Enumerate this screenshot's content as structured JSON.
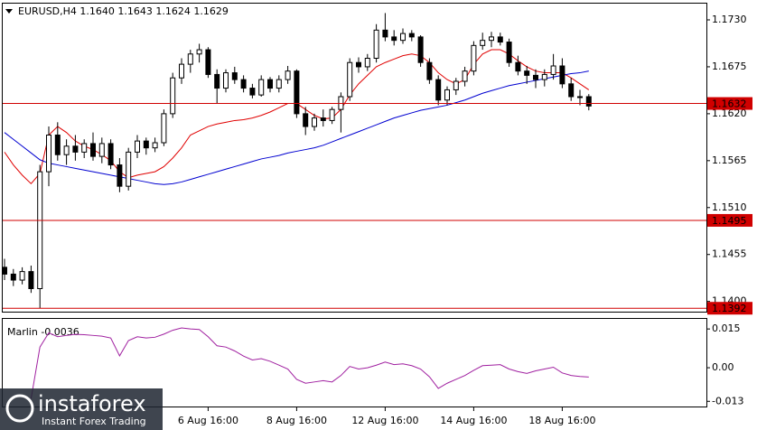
{
  "chart_data": [
    {
      "type": "candlestick",
      "title": "EURUSD,H4  1.1640 1.1643 1.1624 1.1629",
      "categories": [
        null,
        null,
        null,
        null,
        null,
        null,
        null,
        null,
        null,
        null,
        null,
        null,
        null,
        null,
        null,
        null,
        null,
        null,
        null,
        null,
        null,
        null,
        null,
        "6 Aug 16:00",
        null,
        null,
        null,
        null,
        null,
        null,
        null,
        null,
        null,
        "8 Aug 16:00",
        null,
        null,
        null,
        null,
        null,
        null,
        null,
        null,
        null,
        "12 Aug 16:00",
        null,
        null,
        null,
        null,
        null,
        null,
        null,
        null,
        null,
        "14 Aug 16:00",
        null,
        null,
        null,
        null,
        null,
        null,
        null,
        null,
        null,
        "18 Aug 16:00",
        null,
        null,
        null
      ],
      "open": [
        1.144,
        1.1432,
        1.1425,
        1.1435,
        1.1415,
        1.1552,
        1.1595,
        1.1572,
        1.1582,
        1.1575,
        1.1585,
        1.157,
        1.1585,
        1.156,
        1.1535,
        1.1575,
        1.1588,
        1.158,
        1.1586,
        1.162,
        1.1662,
        1.1678,
        1.169,
        1.1695,
        1.1666,
        1.165,
        1.1668,
        1.166,
        1.165,
        1.1642,
        1.166,
        1.165,
        1.166,
        1.167,
        1.162,
        1.1605,
        1.1615,
        1.1612,
        1.1625,
        1.164,
        1.168,
        1.1675,
        1.1685,
        1.1718,
        1.171,
        1.1706,
        1.1714,
        1.171,
        1.168,
        1.166,
        1.1636,
        1.1648,
        1.1658,
        1.167,
        1.17,
        1.1706,
        1.171,
        1.1704,
        1.168,
        1.167,
        1.1665,
        1.166,
        1.1666,
        1.1676,
        1.1655,
        1.164,
        1.164
      ],
      "high": [
        1.145,
        1.1438,
        1.144,
        1.1442,
        1.156,
        1.1605,
        1.161,
        1.159,
        1.1595,
        1.159,
        1.1598,
        1.1592,
        1.159,
        1.1568,
        1.158,
        1.1595,
        1.1592,
        1.1592,
        1.1625,
        1.1668,
        1.1685,
        1.1695,
        1.1702,
        1.1698,
        1.1672,
        1.1672,
        1.1675,
        1.1665,
        1.1655,
        1.1665,
        1.1663,
        1.1665,
        1.1676,
        1.1672,
        1.1628,
        1.162,
        1.1625,
        1.1628,
        1.1645,
        1.1685,
        1.1686,
        1.169,
        1.1725,
        1.1738,
        1.1718,
        1.172,
        1.1718,
        1.1712,
        1.1685,
        1.1665,
        1.1652,
        1.1662,
        1.1675,
        1.1705,
        1.1715,
        1.1716,
        1.1715,
        1.1708,
        1.1688,
        1.1676,
        1.1672,
        1.1672,
        1.169,
        1.1685,
        1.1662,
        1.1648,
        1.1643
      ],
      "low": [
        1.1425,
        1.1418,
        1.142,
        1.141,
        1.1392,
        1.1535,
        1.1565,
        1.156,
        1.1565,
        1.1568,
        1.1565,
        1.1562,
        1.1555,
        1.1528,
        1.153,
        1.1568,
        1.1572,
        1.1575,
        1.1582,
        1.1615,
        1.1655,
        1.1668,
        1.168,
        1.1662,
        1.1632,
        1.1645,
        1.1655,
        1.1645,
        1.1638,
        1.164,
        1.1645,
        1.1645,
        1.1655,
        1.1615,
        1.1595,
        1.16,
        1.1605,
        1.1608,
        1.1598,
        1.1635,
        1.1668,
        1.167,
        1.168,
        1.1705,
        1.17,
        1.1702,
        1.1705,
        1.1675,
        1.1655,
        1.163,
        1.163,
        1.1642,
        1.1652,
        1.1665,
        1.1695,
        1.1698,
        1.17,
        1.1675,
        1.1665,
        1.1655,
        1.165,
        1.1652,
        1.166,
        1.165,
        1.1635,
        1.163,
        1.1624
      ],
      "close": [
        1.1432,
        1.1425,
        1.1435,
        1.1415,
        1.1552,
        1.1595,
        1.1572,
        1.1582,
        1.1575,
        1.1585,
        1.157,
        1.1585,
        1.156,
        1.1535,
        1.1575,
        1.1588,
        1.158,
        1.1586,
        1.162,
        1.1662,
        1.1678,
        1.169,
        1.1695,
        1.1666,
        1.165,
        1.1668,
        1.166,
        1.165,
        1.1642,
        1.166,
        1.165,
        1.166,
        1.167,
        1.162,
        1.1605,
        1.1615,
        1.1612,
        1.1625,
        1.164,
        1.168,
        1.1675,
        1.1685,
        1.1718,
        1.171,
        1.1706,
        1.1714,
        1.171,
        1.168,
        1.166,
        1.1636,
        1.1648,
        1.1658,
        1.167,
        1.17,
        1.1706,
        1.171,
        1.1704,
        1.168,
        1.167,
        1.1665,
        1.166,
        1.1666,
        1.1676,
        1.1655,
        1.164,
        1.164,
        1.1629
      ],
      "overlays": [
        {
          "color": "#e00000",
          "values": [
            1.1575,
            1.156,
            1.1548,
            1.1538,
            1.155,
            1.1595,
            1.1605,
            1.1598,
            1.1588,
            1.1582,
            1.1578,
            1.1572,
            1.1565,
            1.1552,
            1.1545,
            1.1548,
            1.155,
            1.1552,
            1.1558,
            1.1568,
            1.158,
            1.1595,
            1.16,
            1.1605,
            1.1608,
            1.161,
            1.1612,
            1.1613,
            1.1615,
            1.1618,
            1.1622,
            1.1627,
            1.1632,
            1.1632,
            1.1625,
            1.1618,
            1.1614,
            1.1615,
            1.1625,
            1.1642,
            1.1655,
            1.1665,
            1.1675,
            1.168,
            1.1684,
            1.1688,
            1.169,
            1.1688,
            1.168,
            1.1668,
            1.166,
            1.1655,
            1.166,
            1.1678,
            1.169,
            1.1695,
            1.1695,
            1.169,
            1.1682,
            1.1675,
            1.167,
            1.1668,
            1.1668,
            1.1668,
            1.1662,
            1.1655,
            1.1648
          ]
        },
        {
          "color": "#0000d0",
          "values": [
            1.1598,
            1.159,
            1.1582,
            1.1574,
            1.1566,
            1.1562,
            1.156,
            1.1558,
            1.1556,
            1.1554,
            1.1552,
            1.155,
            1.1548,
            1.1546,
            1.1544,
            1.1542,
            1.154,
            1.1538,
            1.1537,
            1.1538,
            1.154,
            1.1543,
            1.1546,
            1.1549,
            1.1552,
            1.1555,
            1.1558,
            1.1561,
            1.1564,
            1.1567,
            1.1569,
            1.1571,
            1.1574,
            1.1576,
            1.1578,
            1.158,
            1.1583,
            1.1587,
            1.1591,
            1.1595,
            1.1599,
            1.1603,
            1.1607,
            1.1611,
            1.1615,
            1.1618,
            1.1621,
            1.1624,
            1.1626,
            1.1628,
            1.163,
            1.1633,
            1.1636,
            1.164,
            1.1644,
            1.1647,
            1.165,
            1.1653,
            1.1655,
            1.1657,
            1.1659,
            1.1661,
            1.1663,
            1.1665,
            1.1667,
            1.1668,
            1.167
          ]
        }
      ],
      "levels": [
        {
          "value": 1.1632,
          "label": "1.1632"
        },
        {
          "value": 1.1495,
          "label": "1.1495"
        },
        {
          "value": 1.1392,
          "label": "1.1392"
        }
      ],
      "level_color": "#d00000",
      "ylim": [
        1.1388,
        1.1748
      ],
      "yticks": [
        {
          "value": 1.173,
          "label": "1.1730"
        },
        {
          "value": 1.1675,
          "label": "1.1675"
        },
        {
          "value": 1.162,
          "label": "1.1620"
        },
        {
          "value": 1.1565,
          "label": "1.1565"
        },
        {
          "value": 1.151,
          "label": "1.1510"
        },
        {
          "value": 1.1455,
          "label": "1.1455"
        },
        {
          "value": 1.14,
          "label": "1.1400"
        }
      ]
    },
    {
      "type": "line",
      "title": "Marlin -0.0036",
      "color": "#a020a0",
      "values": [
        null,
        null,
        null,
        -0.012,
        0.008,
        0.0135,
        0.012,
        0.0125,
        0.0129,
        0.0128,
        0.0125,
        0.0122,
        0.0115,
        0.0046,
        0.0105,
        0.012,
        0.0115,
        0.0118,
        0.013,
        0.0145,
        0.0154,
        0.015,
        0.0148,
        0.012,
        0.0085,
        0.008,
        0.0065,
        0.0045,
        0.003,
        0.0035,
        0.0025,
        0.001,
        -0.0005,
        -0.0045,
        -0.006,
        -0.0055,
        -0.005,
        -0.0055,
        -0.003,
        0.0005,
        -0.0005,
        0.0,
        0.001,
        0.0022,
        0.0012,
        0.0015,
        0.0008,
        -0.0005,
        -0.0035,
        -0.008,
        -0.006,
        -0.0045,
        -0.003,
        -0.001,
        0.0008,
        0.001,
        0.0012,
        -0.0005,
        -0.0015,
        -0.0022,
        -0.0012,
        -0.0005,
        0.0002,
        -0.002,
        -0.003,
        -0.0034,
        -0.0036
      ],
      "ylim": [
        -0.015,
        0.0189
      ],
      "yticks": [
        0.015,
        {
          "value": 0,
          "label": "0.00"
        },
        -0.013
      ]
    }
  ],
  "watermark": {
    "brand": "instaforex",
    "tagline": "Instant Forex Trading"
  }
}
